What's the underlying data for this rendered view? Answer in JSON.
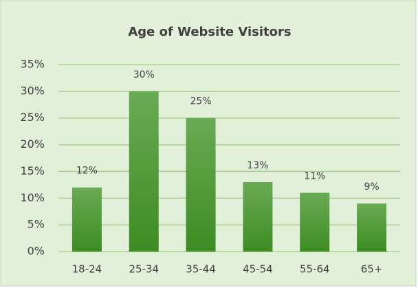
{
  "chart_data": {
    "type": "bar",
    "title": "Age of Website Visitors",
    "categories": [
      "18-24",
      "25-34",
      "35-44",
      "45-54",
      "55-64",
      "65+"
    ],
    "values": [
      12,
      30,
      25,
      13,
      11,
      9
    ],
    "value_labels": [
      "12%",
      "30%",
      "25%",
      "13%",
      "11%",
      "9%"
    ],
    "color": "#4e9a34",
    "ylim": [
      0,
      35
    ],
    "yticks": [
      {
        "value": 0,
        "label": "0%"
      },
      {
        "value": 5,
        "label": "5%"
      },
      {
        "value": 10,
        "label": "10%"
      },
      {
        "value": 15,
        "label": "15%"
      },
      {
        "value": 20,
        "label": "20%"
      },
      {
        "value": 25,
        "label": "25%"
      },
      {
        "value": 30,
        "label": "30%"
      },
      {
        "value": 35,
        "label": "35%"
      }
    ],
    "grid": true
  }
}
